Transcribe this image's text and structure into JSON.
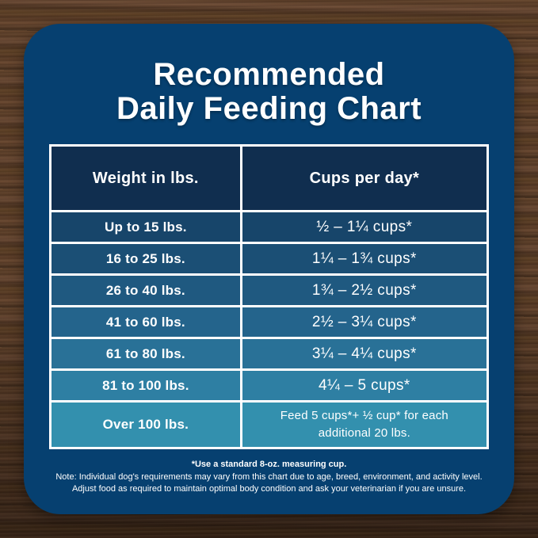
{
  "title": {
    "line1": "Recommended",
    "line2": "Daily Feeding Chart"
  },
  "table": {
    "header_bg": "#102e4f",
    "border_color": "#ffffff",
    "headers": {
      "weight": "Weight in lbs.",
      "cups": "Cups per day*"
    },
    "rows": [
      {
        "weight": "Up to 15 lbs.",
        "cups": "½ – 1¼ cups*",
        "bg": "#17456a"
      },
      {
        "weight": "16 to 25 lbs.",
        "cups": "1¼ – 1¾ cups*",
        "bg": "#1b4f75"
      },
      {
        "weight": "26 to 40 lbs.",
        "cups": "1¾ – 2½ cups*",
        "bg": "#1f5980"
      },
      {
        "weight": "41 to 60 lbs.",
        "cups": "2½ – 3¼ cups*",
        "bg": "#24648c"
      },
      {
        "weight": "61 to 80 lbs.",
        "cups": "3¼ – 4¼ cups*",
        "bg": "#297197"
      },
      {
        "weight": "81 to 100 lbs.",
        "cups": "4¼ – 5 cups*",
        "bg": "#2e7fa3"
      },
      {
        "weight": "Over 100 lbs.",
        "cups": "Feed 5 cups*+ ½ cup* for each additional 20 lbs.",
        "bg": "#3390ae"
      }
    ]
  },
  "notes": {
    "line1": "*Use a standard 8-oz. measuring cup.",
    "line2": "Note: Individual dog's requirements may vary from this chart due to age, breed, environment, and activity level.",
    "line3": "Adjust food as required to maintain optimal body condition and ask your veterinarian if you are unsure."
  },
  "colors": {
    "card_bg": "#064070",
    "text": "#ffffff",
    "wood_brown": "#5a3c26"
  },
  "chart_data": {
    "type": "table",
    "title": "Recommended Daily Feeding Chart",
    "columns": [
      "Weight in lbs.",
      "Cups per day*"
    ],
    "rows": [
      [
        "Up to 15 lbs.",
        "½ – 1¼ cups*"
      ],
      [
        "16 to 25 lbs.",
        "1¼ – 1¾ cups*"
      ],
      [
        "26 to 40 lbs.",
        "1¾ – 2½ cups*"
      ],
      [
        "41 to 60 lbs.",
        "2½ – 3¼ cups*"
      ],
      [
        "61 to 80 lbs.",
        "3¼ – 4¼ cups*"
      ],
      [
        "81 to 100 lbs.",
        "4¼ – 5 cups*"
      ],
      [
        "Over 100 lbs.",
        "Feed 5 cups*+ ½ cup* for each additional 20 lbs."
      ]
    ],
    "footnotes": [
      "*Use a standard 8-oz. measuring cup.",
      "Note: Individual dog's requirements may vary from this chart due to age, breed, environment, and activity level.",
      "Adjust food as required to maintain optimal body condition and ask your veterinarian if you are unsure."
    ]
  }
}
